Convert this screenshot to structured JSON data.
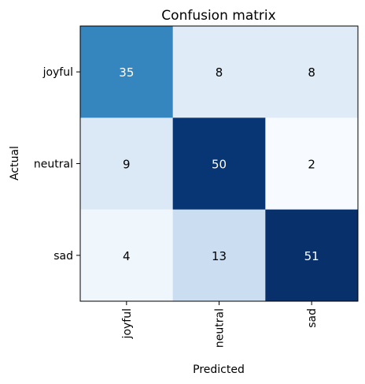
{
  "chart_data": {
    "type": "heatmap",
    "title": "Confusion matrix",
    "xlabel": "Predicted",
    "ylabel": "Actual",
    "x_categories": [
      "joyful",
      "neutral",
      "sad"
    ],
    "y_categories": [
      "joyful",
      "neutral",
      "sad"
    ],
    "values": [
      [
        35,
        8,
        8
      ],
      [
        9,
        50,
        2
      ],
      [
        4,
        13,
        51
      ]
    ],
    "colormap": "Blues",
    "grid": false
  }
}
